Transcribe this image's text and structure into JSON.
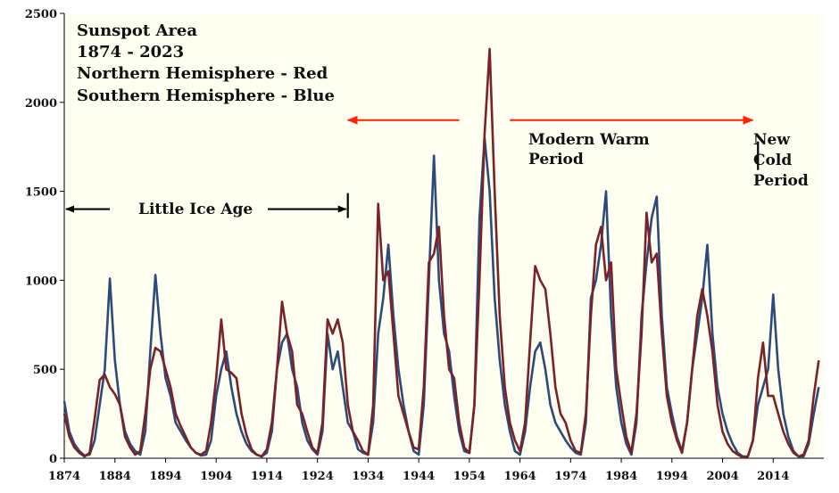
{
  "chart_data": {
    "type": "line",
    "title_lines": [
      "Sunspot Area",
      "1874 - 2023",
      "Northern Hemisphere - Red",
      "Southern Hemisphere - Blue"
    ],
    "xlabel": "",
    "ylabel": "",
    "xlim": [
      1874,
      2024
    ],
    "ylim": [
      0,
      2500
    ],
    "x_ticks": [
      1874,
      1884,
      1894,
      1904,
      1914,
      1924,
      1934,
      1944,
      1954,
      1964,
      1974,
      1984,
      1994,
      2004,
      2014
    ],
    "y_ticks": [
      0,
      500,
      1000,
      1500,
      2000,
      2500
    ],
    "grid": false,
    "background_color": "#fefef1",
    "series": [
      {
        "name": "Northern Hemisphere",
        "color": "#7b2227",
        "points": [
          [
            1874.0,
            250
          ],
          [
            1875.0,
            120
          ],
          [
            1876.0,
            60
          ],
          [
            1877.0,
            30
          ],
          [
            1878.0,
            10
          ],
          [
            1879.0,
            30
          ],
          [
            1880.0,
            220
          ],
          [
            1881.0,
            440
          ],
          [
            1882.0,
            470
          ],
          [
            1883.0,
            400
          ],
          [
            1884.0,
            360
          ],
          [
            1885.0,
            300
          ],
          [
            1886.0,
            120
          ],
          [
            1887.0,
            60
          ],
          [
            1888.0,
            20
          ],
          [
            1889.0,
            40
          ],
          [
            1890.0,
            250
          ],
          [
            1891.0,
            500
          ],
          [
            1892.0,
            620
          ],
          [
            1893.0,
            600
          ],
          [
            1894.0,
            500
          ],
          [
            1895.0,
            400
          ],
          [
            1896.0,
            250
          ],
          [
            1897.0,
            180
          ],
          [
            1898.0,
            120
          ],
          [
            1899.0,
            60
          ],
          [
            1900.0,
            30
          ],
          [
            1901.0,
            20
          ],
          [
            1902.0,
            40
          ],
          [
            1903.0,
            200
          ],
          [
            1904.0,
            450
          ],
          [
            1905.0,
            780
          ],
          [
            1906.0,
            500
          ],
          [
            1907.0,
            480
          ],
          [
            1908.0,
            450
          ],
          [
            1909.0,
            250
          ],
          [
            1910.0,
            130
          ],
          [
            1911.0,
            50
          ],
          [
            1912.0,
            20
          ],
          [
            1913.0,
            10
          ],
          [
            1914.0,
            50
          ],
          [
            1915.0,
            200
          ],
          [
            1916.0,
            500
          ],
          [
            1917.0,
            880
          ],
          [
            1918.0,
            700
          ],
          [
            1919.0,
            600
          ],
          [
            1920.0,
            300
          ],
          [
            1921.0,
            250
          ],
          [
            1922.0,
            150
          ],
          [
            1923.0,
            60
          ],
          [
            1924.0,
            30
          ],
          [
            1925.0,
            200
          ],
          [
            1926.0,
            780
          ],
          [
            1927.0,
            700
          ],
          [
            1928.0,
            780
          ],
          [
            1929.0,
            650
          ],
          [
            1930.0,
            300
          ],
          [
            1931.0,
            150
          ],
          [
            1932.0,
            100
          ],
          [
            1933.0,
            40
          ],
          [
            1934.0,
            20
          ],
          [
            1935.0,
            300
          ],
          [
            1936.0,
            1430
          ],
          [
            1937.0,
            1000
          ],
          [
            1938.0,
            1050
          ],
          [
            1939.0,
            700
          ],
          [
            1940.0,
            350
          ],
          [
            1941.0,
            250
          ],
          [
            1942.0,
            150
          ],
          [
            1943.0,
            60
          ],
          [
            1944.0,
            50
          ],
          [
            1945.0,
            400
          ],
          [
            1946.0,
            1100
          ],
          [
            1947.0,
            1150
          ],
          [
            1948.0,
            1300
          ],
          [
            1949.0,
            800
          ],
          [
            1950.0,
            500
          ],
          [
            1951.0,
            450
          ],
          [
            1952.0,
            200
          ],
          [
            1953.0,
            60
          ],
          [
            1954.0,
            30
          ],
          [
            1955.0,
            300
          ],
          [
            1956.0,
            1000
          ],
          [
            1957.0,
            1820
          ],
          [
            1958.0,
            2300
          ],
          [
            1959.0,
            1500
          ],
          [
            1960.0,
            800
          ],
          [
            1961.0,
            400
          ],
          [
            1962.0,
            200
          ],
          [
            1963.0,
            100
          ],
          [
            1964.0,
            40
          ],
          [
            1965.0,
            200
          ],
          [
            1966.0,
            650
          ],
          [
            1967.0,
            1080
          ],
          [
            1968.0,
            1000
          ],
          [
            1969.0,
            950
          ],
          [
            1970.0,
            700
          ],
          [
            1971.0,
            400
          ],
          [
            1972.0,
            250
          ],
          [
            1973.0,
            200
          ],
          [
            1974.0,
            100
          ],
          [
            1975.0,
            40
          ],
          [
            1976.0,
            30
          ],
          [
            1977.0,
            250
          ],
          [
            1978.0,
            800
          ],
          [
            1979.0,
            1200
          ],
          [
            1980.0,
            1300
          ],
          [
            1981.0,
            1000
          ],
          [
            1982.0,
            1100
          ],
          [
            1983.0,
            500
          ],
          [
            1984.0,
            300
          ],
          [
            1985.0,
            120
          ],
          [
            1986.0,
            30
          ],
          [
            1987.0,
            250
          ],
          [
            1988.0,
            700
          ],
          [
            1989.0,
            1380
          ],
          [
            1990.0,
            1100
          ],
          [
            1991.0,
            1150
          ],
          [
            1992.0,
            700
          ],
          [
            1993.0,
            350
          ],
          [
            1994.0,
            200
          ],
          [
            1995.0,
            100
          ],
          [
            1996.0,
            30
          ],
          [
            1997.0,
            200
          ],
          [
            1998.0,
            500
          ],
          [
            1999.0,
            800
          ],
          [
            2000.0,
            950
          ],
          [
            2001.0,
            800
          ],
          [
            2002.0,
            600
          ],
          [
            2003.0,
            300
          ],
          [
            2004.0,
            150
          ],
          [
            2005.0,
            80
          ],
          [
            2006.0,
            40
          ],
          [
            2007.0,
            20
          ],
          [
            2008.0,
            5
          ],
          [
            2009.0,
            10
          ],
          [
            2010.0,
            100
          ],
          [
            2011.0,
            450
          ],
          [
            2012.0,
            650
          ],
          [
            2013.0,
            350
          ],
          [
            2014.0,
            350
          ],
          [
            2015.0,
            250
          ],
          [
            2016.0,
            150
          ],
          [
            2017.0,
            80
          ],
          [
            2018.0,
            30
          ],
          [
            2019.0,
            10
          ],
          [
            2020.0,
            20
          ],
          [
            2021.0,
            100
          ],
          [
            2022.0,
            350
          ],
          [
            2023.0,
            550
          ]
        ]
      },
      {
        "name": "Southern Hemisphere",
        "color": "#2e4a7a",
        "points": [
          [
            1874.0,
            320
          ],
          [
            1875.0,
            150
          ],
          [
            1876.0,
            80
          ],
          [
            1877.0,
            40
          ],
          [
            1878.0,
            15
          ],
          [
            1879.0,
            20
          ],
          [
            1880.0,
            100
          ],
          [
            1881.0,
            300
          ],
          [
            1882.0,
            500
          ],
          [
            1883.0,
            1010
          ],
          [
            1884.0,
            550
          ],
          [
            1885.0,
            300
          ],
          [
            1886.0,
            150
          ],
          [
            1887.0,
            80
          ],
          [
            1888.0,
            40
          ],
          [
            1889.0,
            20
          ],
          [
            1890.0,
            150
          ],
          [
            1891.0,
            600
          ],
          [
            1892.0,
            1030
          ],
          [
            1893.0,
            700
          ],
          [
            1894.0,
            450
          ],
          [
            1895.0,
            350
          ],
          [
            1896.0,
            200
          ],
          [
            1897.0,
            150
          ],
          [
            1898.0,
            100
          ],
          [
            1899.0,
            60
          ],
          [
            1900.0,
            30
          ],
          [
            1901.0,
            15
          ],
          [
            1902.0,
            20
          ],
          [
            1903.0,
            100
          ],
          [
            1904.0,
            350
          ],
          [
            1905.0,
            500
          ],
          [
            1906.0,
            600
          ],
          [
            1907.0,
            400
          ],
          [
            1908.0,
            250
          ],
          [
            1909.0,
            150
          ],
          [
            1910.0,
            80
          ],
          [
            1911.0,
            40
          ],
          [
            1912.0,
            20
          ],
          [
            1913.0,
            10
          ],
          [
            1914.0,
            30
          ],
          [
            1915.0,
            150
          ],
          [
            1916.0,
            500
          ],
          [
            1917.0,
            650
          ],
          [
            1918.0,
            700
          ],
          [
            1919.0,
            500
          ],
          [
            1920.0,
            400
          ],
          [
            1921.0,
            200
          ],
          [
            1922.0,
            100
          ],
          [
            1923.0,
            50
          ],
          [
            1924.0,
            20
          ],
          [
            1925.0,
            150
          ],
          [
            1926.0,
            700
          ],
          [
            1927.0,
            500
          ],
          [
            1928.0,
            600
          ],
          [
            1929.0,
            400
          ],
          [
            1930.0,
            200
          ],
          [
            1931.0,
            150
          ],
          [
            1932.0,
            50
          ],
          [
            1933.0,
            30
          ],
          [
            1934.0,
            20
          ],
          [
            1935.0,
            200
          ],
          [
            1936.0,
            700
          ],
          [
            1937.0,
            900
          ],
          [
            1938.0,
            1200
          ],
          [
            1939.0,
            800
          ],
          [
            1940.0,
            500
          ],
          [
            1941.0,
            300
          ],
          [
            1942.0,
            150
          ],
          [
            1943.0,
            40
          ],
          [
            1944.0,
            20
          ],
          [
            1945.0,
            300
          ],
          [
            1946.0,
            1000
          ],
          [
            1947.0,
            1700
          ],
          [
            1948.0,
            1000
          ],
          [
            1949.0,
            700
          ],
          [
            1950.0,
            600
          ],
          [
            1951.0,
            350
          ],
          [
            1952.0,
            150
          ],
          [
            1953.0,
            40
          ],
          [
            1954.0,
            30
          ],
          [
            1955.0,
            300
          ],
          [
            1956.0,
            1350
          ],
          [
            1957.0,
            1800
          ],
          [
            1958.0,
            1500
          ],
          [
            1959.0,
            900
          ],
          [
            1960.0,
            550
          ],
          [
            1961.0,
            300
          ],
          [
            1962.0,
            150
          ],
          [
            1963.0,
            40
          ],
          [
            1964.0,
            20
          ],
          [
            1965.0,
            150
          ],
          [
            1966.0,
            400
          ],
          [
            1967.0,
            600
          ],
          [
            1968.0,
            650
          ],
          [
            1969.0,
            500
          ],
          [
            1970.0,
            300
          ],
          [
            1971.0,
            200
          ],
          [
            1972.0,
            150
          ],
          [
            1973.0,
            100
          ],
          [
            1974.0,
            60
          ],
          [
            1975.0,
            30
          ],
          [
            1976.0,
            20
          ],
          [
            1977.0,
            200
          ],
          [
            1978.0,
            900
          ],
          [
            1979.0,
            1000
          ],
          [
            1980.0,
            1200
          ],
          [
            1981.0,
            1500
          ],
          [
            1982.0,
            800
          ],
          [
            1983.0,
            400
          ],
          [
            1984.0,
            200
          ],
          [
            1985.0,
            80
          ],
          [
            1986.0,
            20
          ],
          [
            1987.0,
            200
          ],
          [
            1988.0,
            800
          ],
          [
            1989.0,
            1100
          ],
          [
            1990.0,
            1350
          ],
          [
            1991.0,
            1470
          ],
          [
            1992.0,
            800
          ],
          [
            1993.0,
            400
          ],
          [
            1994.0,
            250
          ],
          [
            1995.0,
            120
          ],
          [
            1996.0,
            40
          ],
          [
            1997.0,
            200
          ],
          [
            1998.0,
            500
          ],
          [
            1999.0,
            700
          ],
          [
            2000.0,
            900
          ],
          [
            2001.0,
            1200
          ],
          [
            2002.0,
            700
          ],
          [
            2003.0,
            400
          ],
          [
            2004.0,
            250
          ],
          [
            2005.0,
            150
          ],
          [
            2006.0,
            80
          ],
          [
            2007.0,
            30
          ],
          [
            2008.0,
            10
          ],
          [
            2009.0,
            10
          ],
          [
            2010.0,
            100
          ],
          [
            2011.0,
            300
          ],
          [
            2012.0,
            400
          ],
          [
            2013.0,
            500
          ],
          [
            2014.0,
            920
          ],
          [
            2015.0,
            500
          ],
          [
            2016.0,
            250
          ],
          [
            2017.0,
            120
          ],
          [
            2018.0,
            40
          ],
          [
            2019.0,
            10
          ],
          [
            2020.0,
            10
          ],
          [
            2021.0,
            80
          ],
          [
            2022.0,
            250
          ],
          [
            2023.0,
            400
          ]
        ]
      }
    ],
    "annotations": {
      "little_ice_age": "Little Ice Age",
      "modern_warm_period": [
        "Modern Warm",
        "Period"
      ],
      "new_cold_period": [
        "New",
        "Cold",
        "Period"
      ]
    },
    "annotation_arrows": {
      "little_ice_age": {
        "from": 1874,
        "to": 1930,
        "y": 1400,
        "color": "#000000"
      },
      "little_ice_age_end": {
        "x": 1930,
        "y0": 1350,
        "y1": 1490
      },
      "modern_warm_left": {
        "from": 1952,
        "to": 1930,
        "y": 1900,
        "color": "#ff2200"
      },
      "modern_warm_right": {
        "from": 1962,
        "to": 2010,
        "y": 1900,
        "color": "#ff2200"
      },
      "new_cold_marker": {
        "x": 2011,
        "y0": 1620,
        "y1": 1780
      }
    }
  }
}
